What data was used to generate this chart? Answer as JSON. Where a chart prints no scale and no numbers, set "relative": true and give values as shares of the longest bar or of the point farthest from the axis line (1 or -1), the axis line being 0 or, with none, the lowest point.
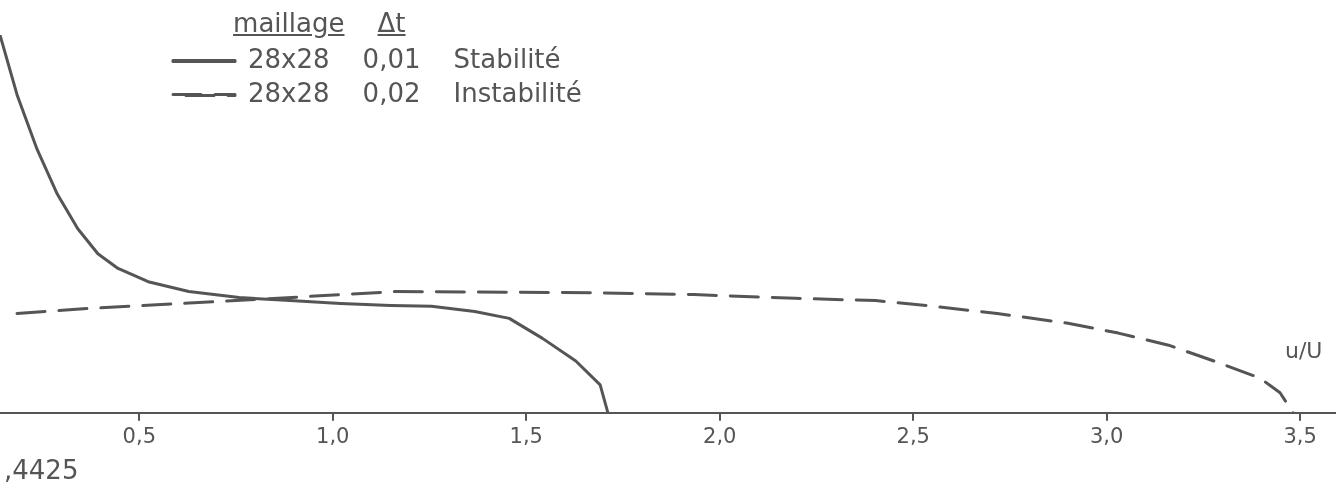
{
  "chart_data": {
    "type": "line",
    "relative": true,
    "xlabel": "u/U",
    "legend": "top left",
    "grid": false,
    "marker": "none",
    "annotations": [
      "maillage",
      "Δt",
      ",4425"
    ],
    "xlim": [
      0.14,
      3.59
    ],
    "xticks": [
      {
        "value": 0.5,
        "label": "0,5"
      },
      {
        "value": 1.0,
        "label": "1,0"
      },
      {
        "value": 1.5,
        "label": "1,5"
      },
      {
        "value": 2.0,
        "label": "2,0"
      },
      {
        "value": 2.5,
        "label": "2,5"
      },
      {
        "value": 3.0,
        "label": "3,0"
      },
      {
        "value": 3.5,
        "label": "3,5"
      }
    ],
    "series": [
      {
        "name": "28x28    0,01    Stabilité",
        "color": "#555555",
        "line_style": "solid",
        "x": [
          0.14,
          0.184,
          0.236,
          0.288,
          0.341,
          0.393,
          0.445,
          0.523,
          0.628,
          0.758,
          0.889,
          1.02,
          1.15,
          1.255,
          1.367,
          1.456,
          1.542,
          1.628,
          1.691,
          1.711
        ],
        "values": [
          1.0,
          0.842,
          0.697,
          0.579,
          0.487,
          0.421,
          0.382,
          0.347,
          0.321,
          0.305,
          0.297,
          0.289,
          0.284,
          0.282,
          0.268,
          0.25,
          0.197,
          0.137,
          0.074,
          0
        ]
      },
      {
        "name": "28x28    0,02    Instabilité",
        "color": "#555555",
        "line_style": "dashed",
        "x": [
          0.184,
          0.367,
          0.714,
          1.163,
          1.672,
          1.933,
          2.195,
          2.403,
          2.534,
          2.717,
          2.9,
          3.03,
          3.16,
          3.291,
          3.396,
          3.448,
          3.482
        ],
        "values": [
          0.263,
          0.276,
          0.295,
          0.321,
          0.318,
          0.313,
          0.303,
          0.297,
          0.284,
          0.263,
          0.237,
          0.211,
          0.179,
          0.132,
          0.092,
          0.053,
          0
        ]
      }
    ]
  }
}
